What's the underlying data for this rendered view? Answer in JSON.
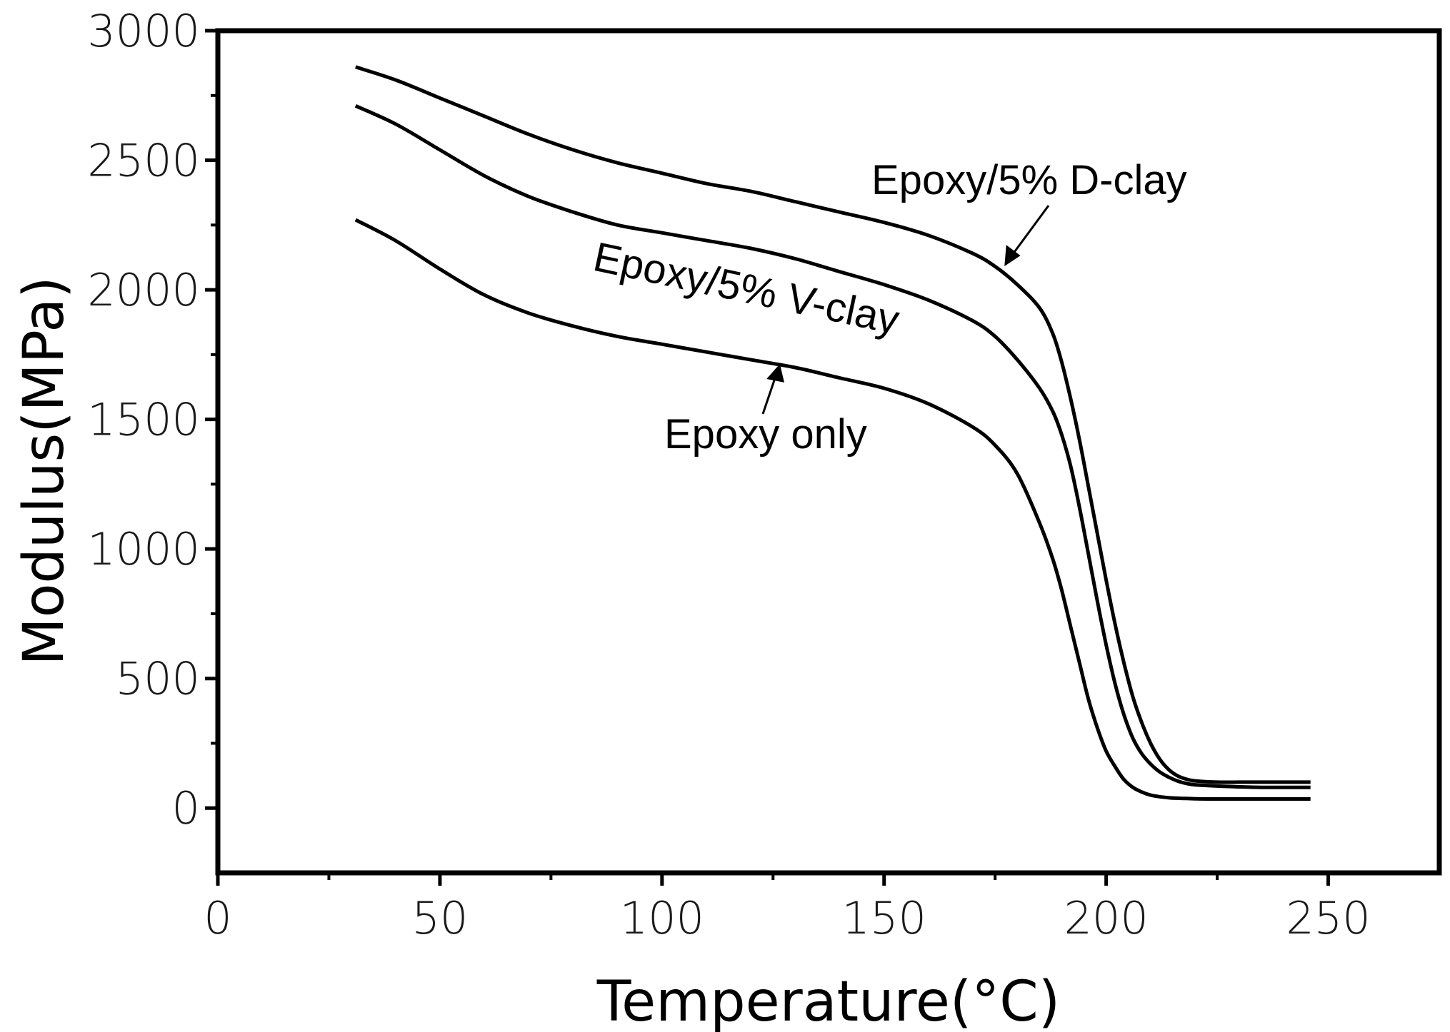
{
  "chart_data": {
    "type": "line",
    "title": "",
    "xlabel": "Temperature(°C)",
    "ylabel": "Modulus(MPa)",
    "xlim": [
      0,
      275
    ],
    "ylim": [
      -250,
      3000
    ],
    "xticks": [
      0,
      50,
      100,
      150,
      200,
      250
    ],
    "yticks": [
      0,
      500,
      1000,
      1500,
      2000,
      2500,
      3000
    ],
    "grid": false,
    "series": [
      {
        "name": "Epoxy/5% D-clay",
        "x": [
          31,
          40,
          50,
          60,
          70,
          80,
          90,
          100,
          110,
          120,
          130,
          140,
          150,
          160,
          170,
          175,
          180,
          185,
          188,
          190,
          192,
          194,
          196,
          198,
          200,
          202,
          204,
          206,
          208,
          210,
          212,
          214,
          216,
          218,
          220,
          225,
          230,
          235,
          240,
          246
        ],
        "y": [
          2860,
          2810,
          2740,
          2670,
          2600,
          2540,
          2490,
          2450,
          2410,
          2380,
          2340,
          2300,
          2260,
          2210,
          2140,
          2090,
          2020,
          1930,
          1830,
          1720,
          1580,
          1420,
          1240,
          1060,
          880,
          710,
          560,
          430,
          330,
          250,
          190,
          150,
          125,
          112,
          105,
          100,
          100,
          100,
          100,
          100
        ]
      },
      {
        "name": "Epoxy/5% V-clay",
        "x": [
          31,
          40,
          50,
          60,
          70,
          80,
          90,
          100,
          110,
          120,
          130,
          140,
          150,
          160,
          170,
          175,
          180,
          185,
          188,
          190,
          192,
          194,
          196,
          198,
          200,
          202,
          204,
          206,
          208,
          210,
          212,
          214,
          216,
          218,
          220,
          225,
          230,
          235,
          240,
          246
        ],
        "y": [
          2710,
          2640,
          2540,
          2440,
          2360,
          2300,
          2250,
          2220,
          2190,
          2160,
          2120,
          2070,
          2020,
          1960,
          1880,
          1820,
          1730,
          1620,
          1530,
          1440,
          1320,
          1160,
          980,
          800,
          630,
          480,
          360,
          270,
          210,
          170,
          140,
          120,
          105,
          95,
          90,
          85,
          82,
          80,
          80,
          80
        ]
      },
      {
        "name": "Epoxy only",
        "x": [
          31,
          40,
          50,
          60,
          70,
          80,
          90,
          100,
          110,
          120,
          130,
          140,
          150,
          160,
          170,
          175,
          180,
          185,
          188,
          190,
          192,
          194,
          196,
          198,
          200,
          202,
          204,
          206,
          208,
          210,
          212,
          214,
          216,
          218,
          220,
          225,
          230,
          235,
          240,
          246
        ],
        "y": [
          2270,
          2190,
          2080,
          1980,
          1910,
          1860,
          1820,
          1790,
          1760,
          1730,
          1700,
          1660,
          1620,
          1560,
          1470,
          1400,
          1290,
          1100,
          960,
          840,
          700,
          560,
          420,
          310,
          220,
          160,
          110,
          80,
          62,
          50,
          44,
          40,
          38,
          37,
          36,
          35,
          35,
          35,
          35,
          35
        ]
      }
    ],
    "annotations": [
      {
        "text": "Epoxy/5% D-clay",
        "target": [
          178,
          2130
        ]
      },
      {
        "text": "Epoxy/5% V-clay",
        "target": null
      },
      {
        "text": "Epoxy only",
        "target": [
          125,
          1720
        ]
      }
    ]
  }
}
